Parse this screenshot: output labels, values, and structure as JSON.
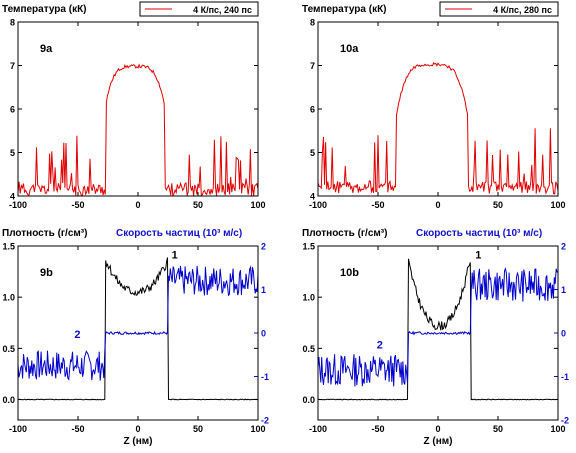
{
  "chart_data": [
    {
      "id": "9a",
      "type": "line",
      "title": "Температура (кК)",
      "panel_label": "9a",
      "legend": "4 К/пс, 240 пс",
      "legend_position": "top-right",
      "xlim": [
        -100,
        100
      ],
      "ylim": [
        4,
        8
      ],
      "x_ticks": [
        -100,
        -50,
        0,
        50,
        100
      ],
      "y_ticks": [
        4,
        5,
        6,
        7,
        8
      ],
      "series": [
        {
          "name": "4 К/пс, 240 пс",
          "color": "#e00000",
          "kind": "temp",
          "seed": 11,
          "profile": {
            "left_edge": -27,
            "right_edge": 22,
            "edge_low": 6.1,
            "peak": 6.98,
            "noise_base": 4.25,
            "noise_amp": 1.1
          }
        }
      ]
    },
    {
      "id": "10a",
      "type": "line",
      "title": "Температура (кК)",
      "panel_label": "10a",
      "legend": "4 К/пс, 280 пс",
      "legend_position": "top-right",
      "xlim": [
        -100,
        100
      ],
      "ylim": [
        4,
        8
      ],
      "x_ticks": [
        -100,
        -50,
        0,
        50,
        100
      ],
      "y_ticks": [
        4,
        5,
        6,
        7,
        8
      ],
      "series": [
        {
          "name": "4 К/пс, 280 пс",
          "color": "#e00000",
          "kind": "temp",
          "seed": 23,
          "profile": {
            "left_edge": -35,
            "right_edge": 25,
            "edge_low": 5.8,
            "peak": 7.03,
            "noise_base": 4.3,
            "noise_amp": 1.2
          }
        }
      ]
    },
    {
      "id": "9b",
      "type": "line",
      "title": "Плотность (г/см³)",
      "right_title": "Скорость частиц (10³ м/с)",
      "panel_label": "9b",
      "xlabel": "Z (нм)",
      "xlim": [
        -100,
        100
      ],
      "ylim": [
        -0.2,
        1.5
      ],
      "y2lim": [
        -2,
        2
      ],
      "x_ticks": [
        -100,
        -50,
        0,
        50,
        100
      ],
      "y_ticks": [
        0.0,
        0.5,
        1.0,
        1.5
      ],
      "y2_ticks": [
        -2,
        -1,
        0,
        1,
        2
      ],
      "curve_labels": [
        {
          "text": "1",
          "x": 28,
          "y": 1.38
        },
        {
          "text": "2",
          "x": -53,
          "y": 0.6
        }
      ],
      "series": [
        {
          "name": "1",
          "color": "#000000",
          "kind": "density",
          "seed": 5,
          "axis": "left",
          "profile": {
            "left_edge": -27,
            "right_edge": 25,
            "low": 0.0,
            "edge_val": 1.37,
            "center_val": 1.05
          }
        },
        {
          "name": "2",
          "color": "#0000cc",
          "kind": "velocity",
          "seed": 7,
          "axis": "right",
          "profile": {
            "left_edge": -27,
            "right_edge": 25,
            "left_level": -0.75,
            "mid_level": 0.0,
            "right_level": 1.2,
            "noise": 0.35
          }
        }
      ]
    },
    {
      "id": "10b",
      "type": "line",
      "title": "Плотность (г/см³)",
      "right_title": "Скорость частиц (10³ м/с)",
      "panel_label": "10b",
      "xlabel": "Z (нм)",
      "xlim": [
        -100,
        100
      ],
      "ylim": [
        -0.2,
        1.5
      ],
      "y2lim": [
        -2,
        2
      ],
      "x_ticks": [
        -100,
        -50,
        0,
        50,
        100
      ],
      "y_ticks": [
        0.0,
        0.5,
        1.0,
        1.5
      ],
      "y2_ticks": [
        -2,
        -1,
        0,
        1,
        2
      ],
      "curve_labels": [
        {
          "text": "1",
          "x": 31,
          "y": 1.38
        },
        {
          "text": "2",
          "x": -51,
          "y": 0.5
        }
      ],
      "series": [
        {
          "name": "1",
          "color": "#000000",
          "kind": "density",
          "seed": 9,
          "axis": "left",
          "profile": {
            "left_edge": -25,
            "right_edge": 27,
            "low": 0.0,
            "edge_val": 1.37,
            "center_val": 0.72
          }
        },
        {
          "name": "2",
          "color": "#0000cc",
          "kind": "velocity",
          "seed": 13,
          "axis": "right",
          "profile": {
            "left_edge": -25,
            "right_edge": 27,
            "left_level": -0.85,
            "mid_level": 0.0,
            "right_level": 1.1,
            "noise": 0.38
          }
        }
      ]
    }
  ]
}
